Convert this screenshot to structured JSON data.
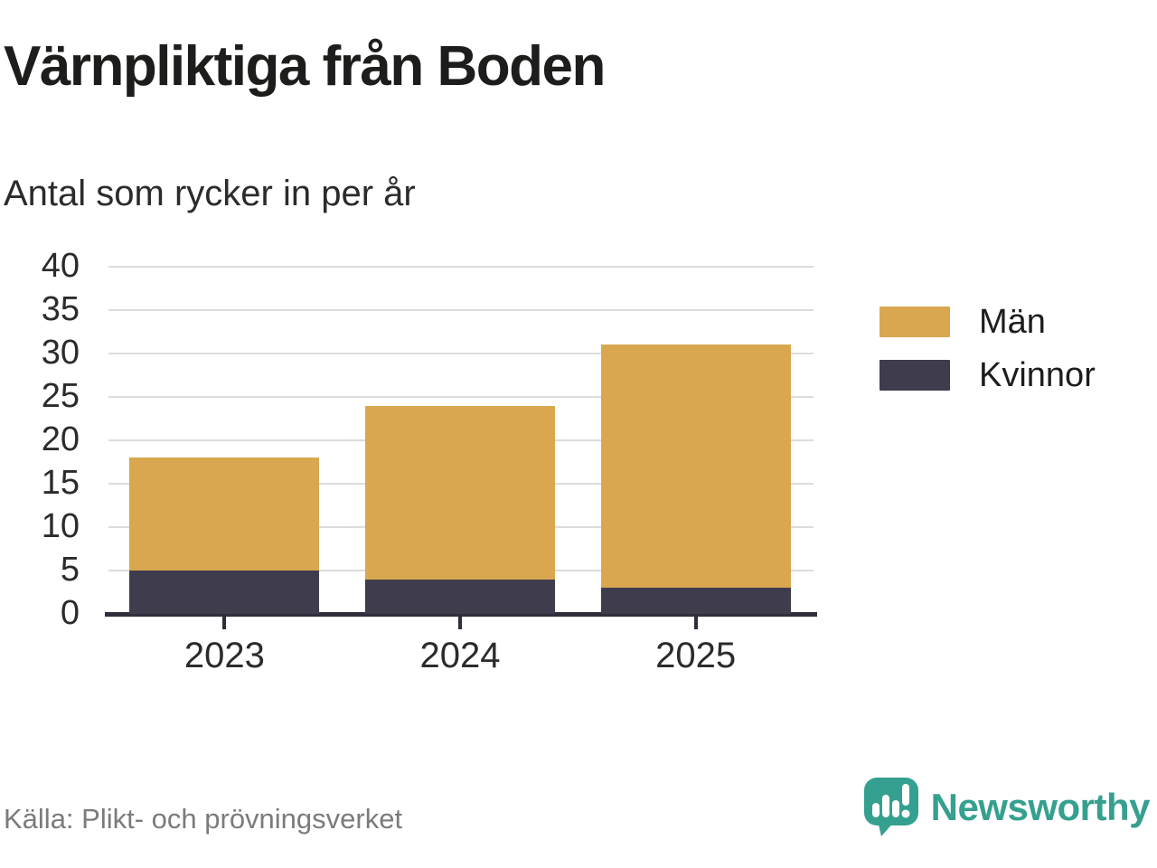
{
  "header": {
    "title": "Värnpliktiga från Boden",
    "subtitle": "Antal som rycker in per år"
  },
  "chart_data": {
    "type": "bar",
    "stacked": true,
    "title": "Värnpliktiga från Boden",
    "subtitle": "Antal som rycker in per år",
    "categories": [
      "2023",
      "2024",
      "2025"
    ],
    "series": [
      {
        "name": "Män",
        "values": [
          13,
          20,
          28
        ],
        "color": "#d9a74f"
      },
      {
        "name": "Kvinnor",
        "values": [
          5,
          4,
          3
        ],
        "color": "#3f3c4e"
      }
    ],
    "stack_bottom_to_top": [
      "Kvinnor",
      "Män"
    ],
    "totals": [
      18,
      24,
      31
    ],
    "xlabel": "",
    "ylabel": "",
    "ylim": [
      0,
      40
    ],
    "yticks": [
      0,
      5,
      10,
      15,
      20,
      25,
      30,
      35,
      40
    ],
    "grid": true,
    "legend_position": "right"
  },
  "footer": {
    "source": "Källa: Plikt- och prövningsverket",
    "brand": "Newsworthy"
  },
  "colors": {
    "men": "#d9a74f",
    "women": "#3f3c4e",
    "axis": "#302e3b",
    "grid": "#dcdcdc",
    "brand_teal": "#35a08f"
  },
  "icons": {
    "logo": "newsworthy-speech-bubble-bar-chart-icon"
  }
}
